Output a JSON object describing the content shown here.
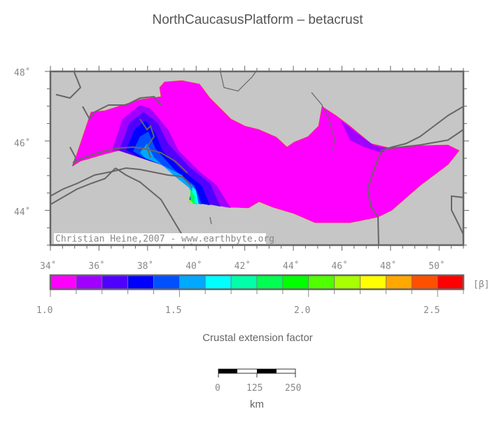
{
  "title": "NorthCaucasusPlatform – betacrust",
  "map": {
    "lon_ticks": [
      "34˚",
      "36˚",
      "38˚",
      "40˚",
      "42˚",
      "44˚",
      "46˚",
      "48˚",
      "50˚"
    ],
    "lat_ticks": [
      "48˚",
      "46˚",
      "44˚"
    ],
    "lon_range": [
      34,
      51
    ],
    "lat_range": [
      43,
      48
    ],
    "credit": "Christian Heine,2007 - www.earthbyte.org",
    "land_color": "#c6c6c6",
    "coast_color": "#666666"
  },
  "colorbar": {
    "unit": "[β]",
    "range": [
      1.0,
      2.6
    ],
    "tick_labels": [
      "1.0",
      "1.5",
      "2.0",
      "2.5"
    ],
    "colors": [
      "#ff00ff",
      "#a000ff",
      "#5000ff",
      "#0000ff",
      "#0050ff",
      "#00a8ff",
      "#00ffff",
      "#00ffa8",
      "#00ff50",
      "#00ff00",
      "#50ff00",
      "#a8ff00",
      "#ffff00",
      "#ffa800",
      "#ff5000",
      "#ff0000"
    ],
    "label": "Crustal extension factor"
  },
  "scalebar": {
    "labels": [
      "0",
      "125",
      "250"
    ],
    "unit": "km"
  }
}
